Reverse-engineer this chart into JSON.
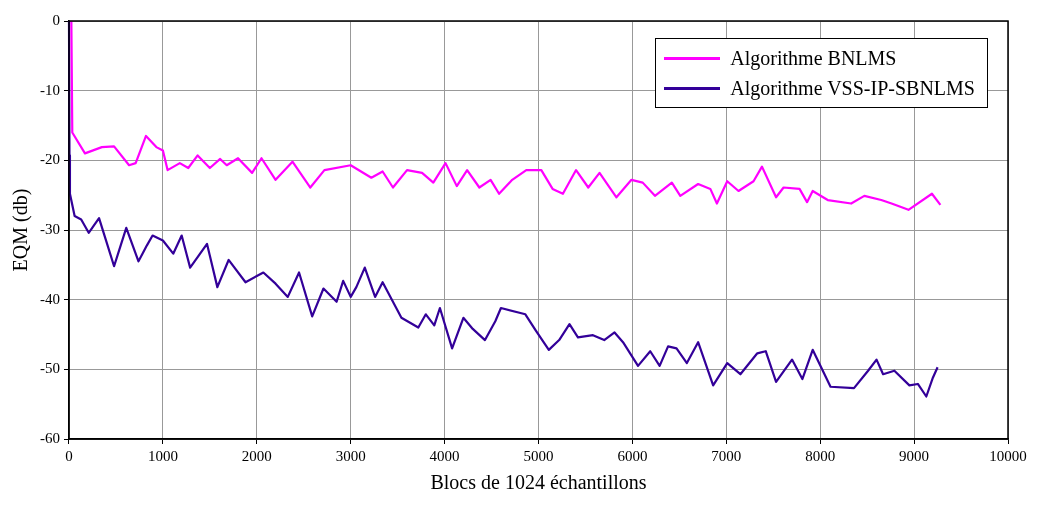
{
  "chart_data": {
    "type": "line",
    "xlabel": "Blocs de 1024 échantillons",
    "ylabel": "EQM (db)",
    "xlim": [
      0,
      10000
    ],
    "xticks": [
      0,
      1000,
      2000,
      3000,
      4000,
      5000,
      6000,
      7000,
      8000,
      9000,
      10000
    ],
    "ylim": [
      -60,
      0
    ],
    "yticks": [
      -60,
      -50,
      -40,
      -30,
      -20,
      -10,
      0
    ],
    "grid": true,
    "legend": "top right",
    "line_style": "solid",
    "marker": "none",
    "series": [
      {
        "name": "Algorithme BNLMS",
        "color": "#ff00ff",
        "x": [
          25,
          35,
          170,
          350,
          480,
          640,
          710,
          820,
          930,
          1000,
          1050,
          1180,
          1270,
          1370,
          1500,
          1610,
          1680,
          1800,
          1950,
          2050,
          2200,
          2380,
          2570,
          2720,
          3000,
          3220,
          3340,
          3450,
          3600,
          3760,
          3880,
          4010,
          4130,
          4240,
          4370,
          4490,
          4580,
          4720,
          4870,
          5030,
          5150,
          5260,
          5400,
          5530,
          5650,
          5830,
          5990,
          6110,
          6240,
          6420,
          6510,
          6700,
          6830,
          6900,
          7010,
          7130,
          7290,
          7380,
          7530,
          7610,
          7780,
          7860,
          7920,
          8080,
          8330,
          8470,
          8650,
          8760,
          8940,
          9190,
          9280
        ],
        "values": [
          0,
          -16,
          -19,
          -18.1,
          -18,
          -20.7,
          -20.4,
          -16.5,
          -18.1,
          -18.6,
          -21.4,
          -20.4,
          -21.1,
          -19.3,
          -21.1,
          -19.8,
          -20.7,
          -19.7,
          -21.8,
          -19.7,
          -22.8,
          -20.2,
          -23.9,
          -21.4,
          -20.7,
          -22.5,
          -21.6,
          -23.9,
          -21.4,
          -21.8,
          -23.2,
          -20.4,
          -23.7,
          -21.4,
          -23.9,
          -22.8,
          -24.8,
          -22.8,
          -21.4,
          -21.4,
          -24.1,
          -24.8,
          -21.4,
          -23.9,
          -21.8,
          -25.3,
          -22.8,
          -23.2,
          -25.1,
          -23.2,
          -25.1,
          -23.4,
          -24.1,
          -26.2,
          -23,
          -24.4,
          -23,
          -20.9,
          -25.3,
          -23.9,
          -24.1,
          -26,
          -24.4,
          -25.7,
          -26.2,
          -25.1,
          -25.7,
          -26.2,
          -27.1,
          -24.8,
          -26.4
        ]
      },
      {
        "name": "Algorithme VSS-IP-SBNLMS",
        "color": "#330099",
        "x": [
          0,
          5,
          10,
          60,
          130,
          210,
          320,
          390,
          480,
          610,
          740,
          830,
          890,
          1000,
          1110,
          1200,
          1290,
          1470,
          1580,
          1700,
          1880,
          2070,
          2200,
          2330,
          2450,
          2590,
          2710,
          2850,
          2920,
          3000,
          3060,
          3150,
          3260,
          3340,
          3540,
          3720,
          3800,
          3890,
          3950,
          4080,
          4200,
          4300,
          4430,
          4540,
          4600,
          4860,
          4970,
          5110,
          5220,
          5330,
          5420,
          5580,
          5700,
          5810,
          5900,
          6060,
          6190,
          6290,
          6380,
          6470,
          6580,
          6700,
          6860,
          7010,
          7150,
          7330,
          7420,
          7530,
          7700,
          7810,
          7920,
          8110,
          8360,
          8510,
          8600,
          8670,
          8790,
          8950,
          9040,
          9130,
          9200,
          9250
        ],
        "values": [
          0,
          -19.3,
          -24.8,
          -28,
          -28.5,
          -30.4,
          -28.3,
          -31.3,
          -35.2,
          -29.7,
          -34.5,
          -32.2,
          -30.8,
          -31.5,
          -33.4,
          -30.8,
          -35.4,
          -32,
          -38.2,
          -34.3,
          -37.5,
          -36.1,
          -37.7,
          -39.6,
          -36.1,
          -42.4,
          -38.4,
          -40.3,
          -37.3,
          -39.6,
          -38.2,
          -35.4,
          -39.6,
          -37.5,
          -42.6,
          -44,
          -42.1,
          -43.7,
          -41.2,
          -47,
          -42.6,
          -44.2,
          -45.8,
          -43.1,
          -41.2,
          -42.1,
          -44.4,
          -47.2,
          -45.8,
          -43.5,
          -45.4,
          -45.1,
          -45.8,
          -44.7,
          -46.1,
          -49.5,
          -47.4,
          -49.5,
          -46.7,
          -47,
          -49.1,
          -46.1,
          -52.3,
          -49.1,
          -50.7,
          -47.7,
          -47.4,
          -51.8,
          -48.6,
          -51.4,
          -47.2,
          -52.5,
          -52.7,
          -50.2,
          -48.6,
          -50.7,
          -50.2,
          -52.3,
          -52.1,
          -53.9,
          -51.2,
          -49.7
        ]
      }
    ]
  }
}
